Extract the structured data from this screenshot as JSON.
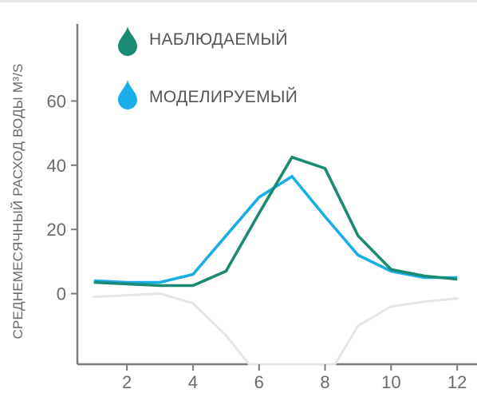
{
  "chart_data": {
    "type": "line",
    "ylabel": "СРЕДНЕМЕСЯЧНЫЙ РАСХОД ВОДЫ М³/S",
    "x_ticks": [
      2,
      4,
      6,
      8,
      10,
      12
    ],
    "y_ticks": [
      0,
      20,
      40,
      60
    ],
    "xlim": [
      0.5,
      12.6
    ],
    "ylim": [
      -22,
      84
    ],
    "grid": false,
    "legend_position": "top-left",
    "series": [
      {
        "name": "НАБЛЮДАЕМЫЙ",
        "color": "#1a8a72",
        "icon": "water-drop-icon",
        "x": [
          1,
          2,
          3,
          4,
          5,
          6,
          7,
          8,
          9,
          10,
          11,
          12
        ],
        "y": [
          3.5,
          3,
          2.5,
          2.5,
          7,
          25,
          42.5,
          39,
          18,
          7.5,
          5.5,
          4.5
        ]
      },
      {
        "name": "МОДЕЛИРУЕМЫЙ",
        "color": "#19aee6",
        "icon": "water-drop-icon",
        "x": [
          1,
          2,
          3,
          4,
          5,
          6,
          7,
          8,
          9,
          10,
          11,
          12
        ],
        "y": [
          4,
          3.5,
          3.5,
          6,
          18,
          30,
          36.5,
          24,
          12,
          7,
          5,
          5
        ]
      }
    ],
    "reflection": {
      "color": "#e6e6e6",
      "x": [
        1,
        2,
        3,
        4,
        5,
        5.7,
        6,
        7,
        8,
        8.3,
        9,
        10,
        11,
        12
      ],
      "y": [
        -1,
        -0.5,
        0,
        -3,
        -13,
        -22,
        -22,
        -22,
        -22,
        -22,
        -10,
        -4,
        -2.5,
        -1.5
      ]
    }
  }
}
